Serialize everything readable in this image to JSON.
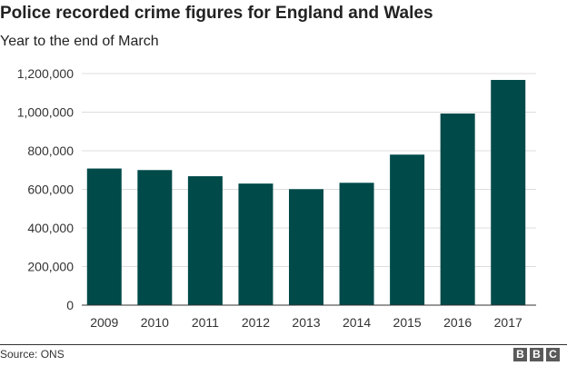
{
  "header": {
    "title": "Police recorded crime figures for England and Wales",
    "subtitle": "Year to the end of March"
  },
  "footer": {
    "source": "Source: ONS",
    "logo_letters": [
      "B",
      "B",
      "C"
    ]
  },
  "colors": {
    "bar": "#004a4a",
    "grid": "#dddddd",
    "axis": "#333333"
  },
  "chart_data": {
    "type": "bar",
    "title": "Police recorded crime figures for England and Wales",
    "subtitle": "Year to the end of March",
    "xlabel": "",
    "ylabel": "",
    "categories": [
      "2009",
      "2010",
      "2011",
      "2012",
      "2013",
      "2014",
      "2015",
      "2016",
      "2017"
    ],
    "values": [
      708000,
      700000,
      668000,
      630000,
      601000,
      634000,
      780000,
      993000,
      1167000
    ],
    "ylim": [
      0,
      1200000
    ],
    "yticks": [
      0,
      200000,
      400000,
      600000,
      800000,
      1000000,
      1200000
    ],
    "ytick_labels": [
      "0",
      "200,000",
      "400,000",
      "600,000",
      "800,000",
      "1,000,000",
      "1,200,000"
    ],
    "grid": true,
    "legend": "none"
  }
}
